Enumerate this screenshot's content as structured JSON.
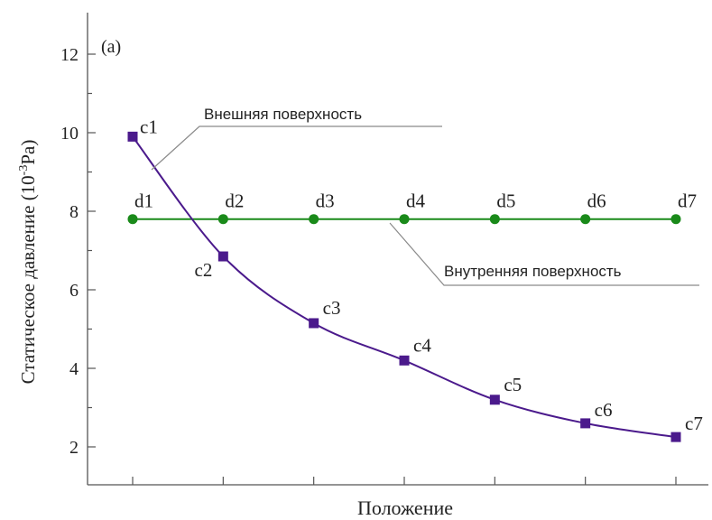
{
  "chart_data": {
    "type": "line",
    "panel_label": "(a)",
    "xlabel": "Положение",
    "ylabel": "Статическое давление (10",
    "ylabel_sup": "-3",
    "ylabel_tail": "Pa)",
    "y_ticks": [
      "2",
      "4",
      "6",
      "8",
      "10",
      "12"
    ],
    "ylim": [
      1.5,
      13
    ],
    "x_positions": [
      1,
      2,
      3,
      4,
      5,
      6,
      7
    ],
    "xlim": [
      0.5,
      7.5
    ],
    "grid": false,
    "series": [
      {
        "name": "Внешняя поверхность",
        "marker": "square",
        "color": "#4b1a8c",
        "point_labels": [
          "c1",
          "c2",
          "c3",
          "c4",
          "c5",
          "c6",
          "c7"
        ],
        "values": [
          9.9,
          6.85,
          5.15,
          4.2,
          3.2,
          2.6,
          2.25
        ]
      },
      {
        "name": "Внутренняя поверхность",
        "marker": "circle",
        "color": "#1a8a1a",
        "point_labels": [
          "d1",
          "d2",
          "d3",
          "d4",
          "d5",
          "d6",
          "d7"
        ],
        "values": [
          7.8,
          7.8,
          7.8,
          7.8,
          7.8,
          7.8,
          7.8
        ]
      }
    ]
  }
}
